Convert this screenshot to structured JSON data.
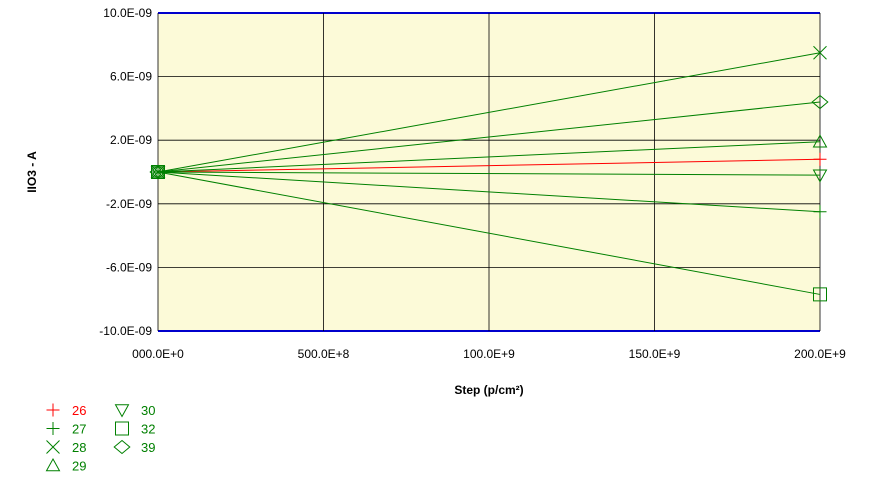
{
  "chart_data": {
    "type": "line",
    "title": "",
    "xlabel": "Step (p/cm²)",
    "ylabel": "IIO3 - A",
    "xlim": [
      0,
      200000000000
    ],
    "ylim": [
      -1e-08,
      1e-08
    ],
    "x_tick_values": [
      0,
      50000000000,
      100000000000,
      150000000000,
      200000000000
    ],
    "x_tick_labels": [
      "000.0E+0",
      "500.0E+8",
      "100.0E+9",
      "150.0E+9",
      "200.0E+9"
    ],
    "y_tick_values": [
      1e-08,
      6e-09,
      2e-09,
      -2e-09,
      -6e-09,
      -1e-08
    ],
    "y_tick_labels": [
      "10.0E-09",
      "6.0E-09",
      "2.0E-09",
      "-2.0E-09",
      "-6.0E-09",
      "-10.0E-09"
    ],
    "grid": true,
    "legend_position": "bottom-left",
    "plot_background": "#fcfad8",
    "series": [
      {
        "name": "26",
        "marker": "plus",
        "color": "#ff0000",
        "x": [
          0,
          200000000000
        ],
        "y": [
          0,
          8e-10
        ]
      },
      {
        "name": "27",
        "marker": "plus",
        "color": "#008000",
        "x": [
          0,
          200000000000
        ],
        "y": [
          0,
          -2.5e-09
        ]
      },
      {
        "name": "28",
        "marker": "x",
        "color": "#008000",
        "x": [
          0,
          200000000000
        ],
        "y": [
          0,
          7.5e-09
        ]
      },
      {
        "name": "29",
        "marker": "triangle-up",
        "color": "#008000",
        "x": [
          0,
          200000000000
        ],
        "y": [
          0,
          1.9e-09
        ]
      },
      {
        "name": "30",
        "marker": "triangle-down",
        "color": "#008000",
        "x": [
          0,
          200000000000
        ],
        "y": [
          0,
          -2e-10
        ]
      },
      {
        "name": "32",
        "marker": "square",
        "color": "#008000",
        "x": [
          0,
          200000000000
        ],
        "y": [
          0,
          -7.7e-09
        ]
      },
      {
        "name": "39",
        "marker": "diamond",
        "color": "#008000",
        "x": [
          0,
          200000000000
        ],
        "y": [
          0,
          4.4e-09
        ]
      }
    ]
  }
}
